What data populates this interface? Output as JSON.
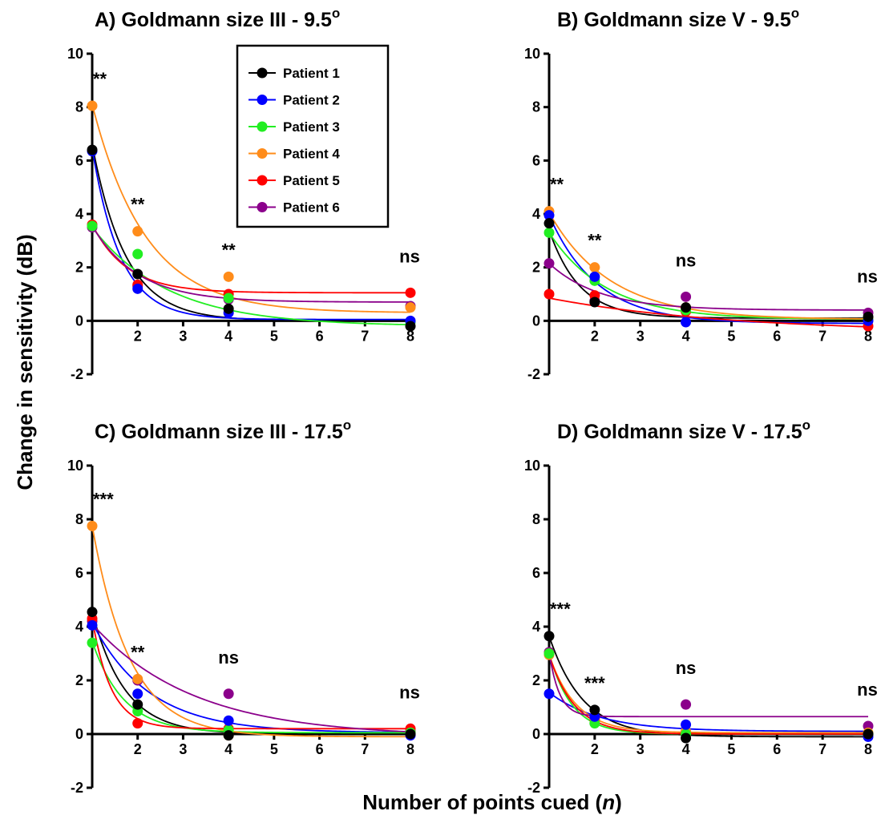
{
  "xlabel": "Number of points cued",
  "xlabel_var": "n",
  "ylabel": "Change in sensitivity (dB)",
  "legend": {
    "placement": "top-right of panel A",
    "series": [
      {
        "name": "Patient 1",
        "color": "#000000"
      },
      {
        "name": "Patient 2",
        "color": "#0000ff"
      },
      {
        "name": "Patient 3",
        "color": "#22ee22"
      },
      {
        "name": "Patient 4",
        "color": "#ff8c1a"
      },
      {
        "name": "Patient 5",
        "color": "#ff0000"
      },
      {
        "name": "Patient 6",
        "color": "#8b008b"
      }
    ]
  },
  "chart_data": [
    {
      "type": "scatter",
      "title_main": "A) Goldmann size III - 9.5",
      "title_sup": "o",
      "x": [
        1,
        2,
        4,
        8
      ],
      "xticks": [
        "2",
        "3",
        "4",
        "5",
        "6",
        "7",
        "8"
      ],
      "yticks": [
        "-2",
        "0",
        "2",
        "4",
        "6",
        "8",
        "10"
      ],
      "ylim": [
        -2,
        10
      ],
      "xlim": [
        1,
        8
      ],
      "significance": [
        "**",
        "**",
        "**",
        "ns"
      ],
      "series": [
        {
          "name": "Patient 1",
          "values": [
            6.4,
            1.75,
            0.45,
            -0.2
          ],
          "fit": {
            "a": 6.6,
            "k": 1.35,
            "c": 0.0
          }
        },
        {
          "name": "Patient 2",
          "values": [
            6.35,
            1.2,
            0.3,
            0.0
          ],
          "fit": {
            "a": 6.4,
            "k": 1.6,
            "c": 0.05
          }
        },
        {
          "name": "Patient 3",
          "values": [
            3.55,
            2.5,
            0.85,
            -0.05
          ],
          "fit": {
            "a": 3.7,
            "k": 0.6,
            "c": -0.2
          }
        },
        {
          "name": "Patient 4",
          "values": [
            8.05,
            3.35,
            1.65,
            0.5
          ],
          "fit": {
            "a": 7.8,
            "k": 0.85,
            "c": 0.3
          }
        },
        {
          "name": "Patient 5",
          "values": [
            3.6,
            1.35,
            1.0,
            1.05
          ],
          "fit": {
            "a": 2.55,
            "k": 1.3,
            "c": 1.05
          }
        },
        {
          "name": "Patient 6",
          "values": [
            3.5,
            1.3,
            0.8,
            0.55
          ],
          "fit": {
            "a": 2.85,
            "k": 1.0,
            "c": 0.7
          }
        }
      ]
    },
    {
      "type": "scatter",
      "title_main": "B) Goldmann size V - 9.5",
      "title_sup": "o",
      "x": [
        1,
        2,
        4,
        8
      ],
      "xticks": [
        "2",
        "3",
        "4",
        "5",
        "6",
        "7",
        "8"
      ],
      "yticks": [
        "-2",
        "0",
        "2",
        "4",
        "6",
        "8",
        "10"
      ],
      "ylim": [
        -2,
        10
      ],
      "xlim": [
        1,
        8
      ],
      "significance": [
        "**",
        "**",
        "ns",
        "ns"
      ],
      "series": [
        {
          "name": "Patient 1",
          "values": [
            3.65,
            0.7,
            0.5,
            0.15
          ],
          "fit": {
            "a": 3.3,
            "k": 1.5,
            "c": 0.1
          }
        },
        {
          "name": "Patient 2",
          "values": [
            3.95,
            1.65,
            -0.05,
            0.0
          ],
          "fit": {
            "a": 4.05,
            "k": 0.95,
            "c": -0.1
          }
        },
        {
          "name": "Patient 3",
          "values": [
            3.3,
            1.5,
            0.4,
            0.05
          ],
          "fit": {
            "a": 3.25,
            "k": 0.8,
            "c": 0.05
          }
        },
        {
          "name": "Patient 4",
          "values": [
            4.1,
            2.0,
            0.5,
            0.1
          ],
          "fit": {
            "a": 4.0,
            "k": 0.75,
            "c": 0.05
          }
        },
        {
          "name": "Patient 5",
          "values": [
            1.0,
            0.95,
            0.35,
            -0.2
          ],
          "fit": {
            "a": 1.3,
            "k": 0.25,
            "c": -0.45
          }
        },
        {
          "name": "Patient 6",
          "values": [
            2.15,
            0.75,
            0.9,
            0.3
          ],
          "fit": {
            "a": 1.75,
            "k": 0.9,
            "c": 0.4
          }
        }
      ]
    },
    {
      "type": "scatter",
      "title_main": "C) Goldmann size III - 17.5",
      "title_sup": "o",
      "x": [
        1,
        2,
        4,
        8
      ],
      "xticks": [
        "2",
        "3",
        "4",
        "5",
        "6",
        "7",
        "8"
      ],
      "yticks": [
        "-2",
        "0",
        "2",
        "4",
        "6",
        "8",
        "10"
      ],
      "ylim": [
        -2,
        10
      ],
      "xlim": [
        1,
        8
      ],
      "significance": [
        "***",
        "**",
        "ns",
        "ns"
      ],
      "series": [
        {
          "name": "Patient 1",
          "values": [
            4.55,
            1.1,
            -0.05,
            0.0
          ],
          "fit": {
            "a": 4.55,
            "k": 1.4,
            "c": 0.0
          }
        },
        {
          "name": "Patient 2",
          "values": [
            4.05,
            1.5,
            0.5,
            -0.05
          ],
          "fit": {
            "a": 4.1,
            "k": 0.8,
            "c": 0.05
          }
        },
        {
          "name": "Patient 3",
          "values": [
            3.4,
            0.85,
            0.15,
            0.05
          ],
          "fit": {
            "a": 3.4,
            "k": 1.45,
            "c": 0.05
          }
        },
        {
          "name": "Patient 4",
          "values": [
            7.75,
            2.05,
            -0.05,
            0.05
          ],
          "fit": {
            "a": 7.85,
            "k": 1.2,
            "c": -0.1
          }
        },
        {
          "name": "Patient 5",
          "values": [
            4.3,
            0.4,
            0.2,
            0.2
          ],
          "fit": {
            "a": 4.1,
            "k": 2.4,
            "c": 0.2
          }
        },
        {
          "name": "Patient 6",
          "values": [
            4.2,
            2.0,
            1.5,
            0.1
          ],
          "fit": {
            "a": 4.2,
            "k": 0.45,
            "c": -0.1
          }
        }
      ]
    },
    {
      "type": "scatter",
      "title_main": "D) Goldmann size V - 17.5",
      "title_sup": "o",
      "x": [
        1,
        2,
        4,
        8
      ],
      "xticks": [
        "2",
        "3",
        "4",
        "5",
        "6",
        "7",
        "8"
      ],
      "yticks": [
        "-2",
        "0",
        "2",
        "4",
        "6",
        "8",
        "10"
      ],
      "ylim": [
        -2,
        10
      ],
      "xlim": [
        1,
        8
      ],
      "significance": [
        "***",
        "***",
        "ns",
        "ns"
      ],
      "series": [
        {
          "name": "Patient 1",
          "values": [
            3.65,
            0.9,
            -0.15,
            0.0
          ],
          "fit": {
            "a": 3.75,
            "k": 1.35,
            "c": -0.1
          }
        },
        {
          "name": "Patient 2",
          "values": [
            1.5,
            0.65,
            0.35,
            -0.1
          ],
          "fit": {
            "a": 1.45,
            "k": 0.9,
            "c": 0.1
          }
        },
        {
          "name": "Patient 3",
          "values": [
            3.0,
            0.4,
            0.0,
            0.0
          ],
          "fit": {
            "a": 3.0,
            "k": 2.0,
            "c": 0.0
          }
        },
        {
          "name": "Patient 4",
          "values": [
            2.95,
            0.6,
            0.1,
            0.05
          ],
          "fit": {
            "a": 2.9,
            "k": 1.7,
            "c": 0.05
          }
        },
        {
          "name": "Patient 5",
          "values": [
            3.0,
            0.55,
            0.05,
            0.0
          ],
          "fit": {
            "a": 2.95,
            "k": 1.8,
            "c": 0.0
          }
        },
        {
          "name": "Patient 6",
          "values": [
            3.05,
            0.6,
            1.1,
            0.3
          ],
          "fit": {
            "a": 2.4,
            "k": 4.5,
            "c": 0.65
          }
        }
      ]
    }
  ]
}
